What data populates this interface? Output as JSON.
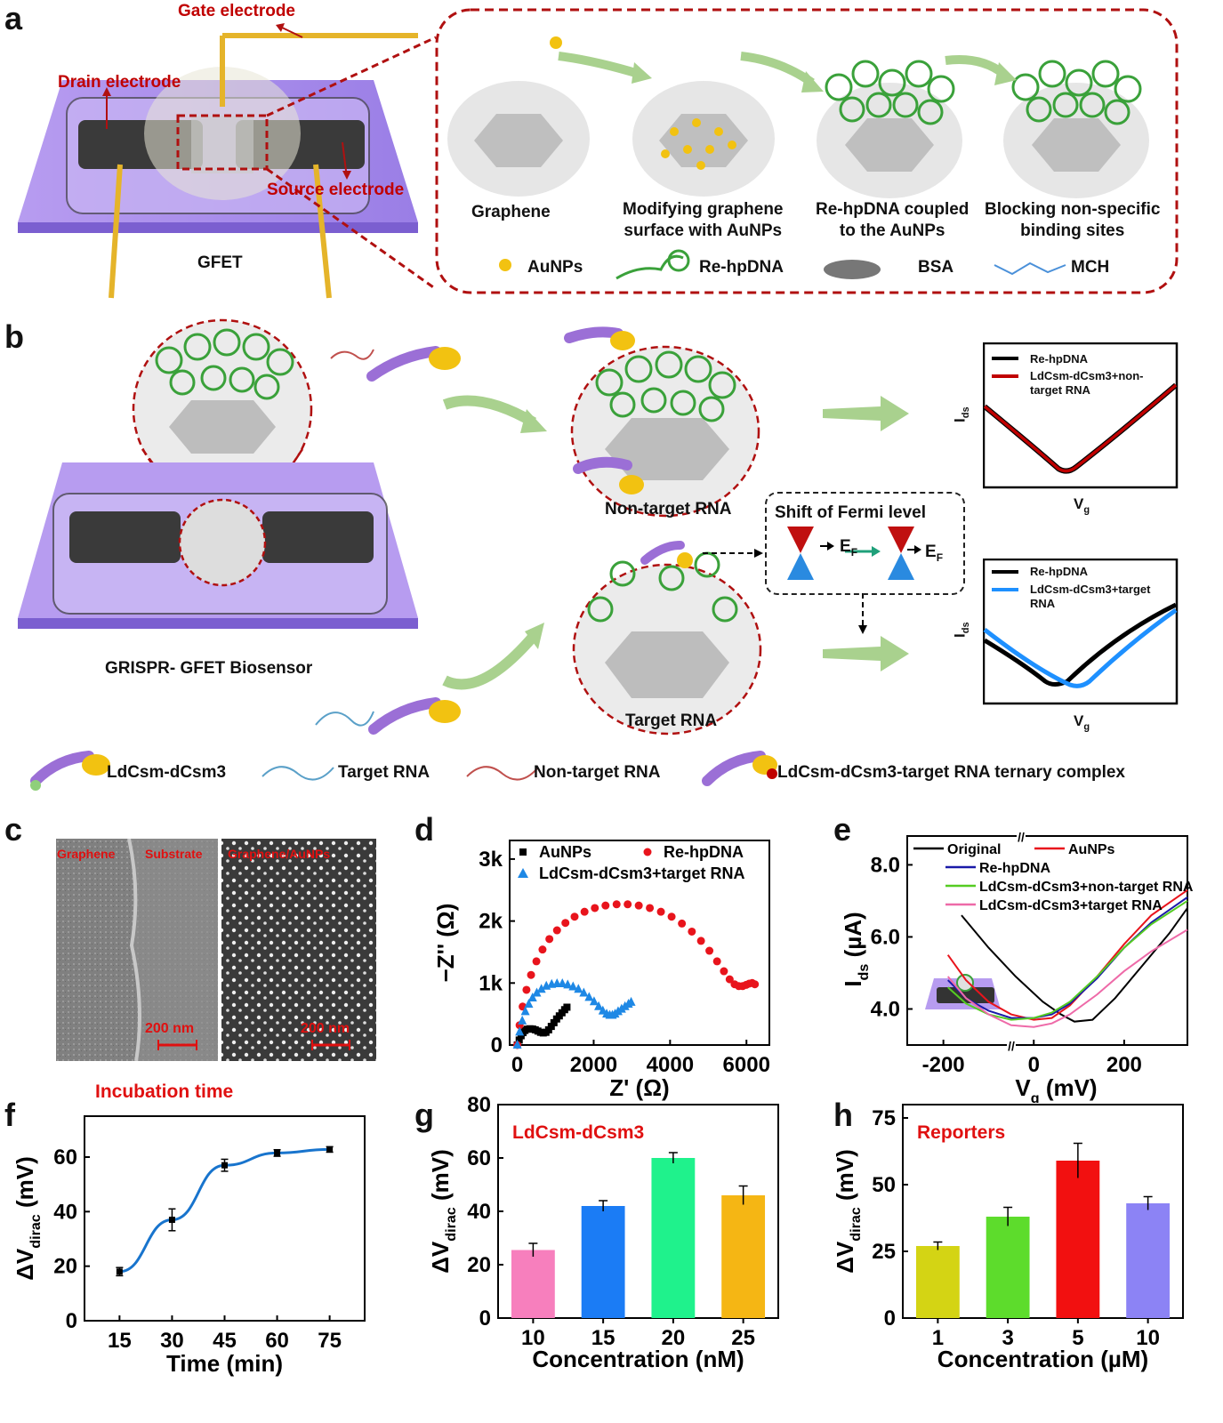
{
  "panels": {
    "a": {
      "label": "a",
      "gate": "Gate electrode",
      "drain": "Drain electrode",
      "source": "Source electrode",
      "device": "GFET",
      "steps": [
        "Graphene",
        "Modifying graphene\nsurface with AuNPs",
        "Re-hpDNA coupled\nto the AuNPs",
        "Blocking non-specific\nbinding sites"
      ],
      "legend": [
        "AuNPs",
        "Re-hpDNA",
        "BSA",
        "MCH"
      ]
    },
    "b": {
      "label": "b",
      "nontarget": "Non-target RNA",
      "target": "Target RNA",
      "biosensor": "GRISPR- GFET Biosensor",
      "fermi": "Shift of Fermi level",
      "ef": "E",
      "ef_sub": "F",
      "plot1_legend": [
        "Re-hpDNA",
        "LdCsm-dCsm3+non-\ntarget RNA"
      ],
      "plot2_legend": [
        "Re-hpDNA",
        "LdCsm-dCsm3+target\nRNA"
      ],
      "ids": "I",
      "ids_sub": "ds",
      "vg": "V",
      "vg_sub": "g",
      "legend": [
        "LdCsm-dCsm3",
        "Target RNA",
        "Non-target RNA",
        "LdCsm-dCsm3-target RNA ternary complex"
      ]
    },
    "c": {
      "label": "c",
      "img1_labels": [
        "Graphene",
        "Substrate"
      ],
      "img2_label": "Graphene/AuNPs",
      "scale": "200 nm"
    },
    "d": {
      "label": "d"
    },
    "e": {
      "label": "e"
    },
    "f": {
      "label": "f",
      "annotation": "Incubation time"
    },
    "g": {
      "label": "g",
      "annotation": "LdCsm-dCsm3"
    },
    "h": {
      "label": "h",
      "annotation": "Reporters"
    }
  },
  "chart_data": [
    {
      "panel": "d",
      "type": "scatter",
      "xlabel": "Z' (Ω)",
      "ylabel": "−Z'' (Ω)",
      "xticks": [
        "0",
        "2000",
        "4000",
        "6000"
      ],
      "yticks": [
        "0",
        "1k",
        "2k",
        "3k"
      ],
      "xlim": [
        -200,
        6600
      ],
      "ylim": [
        0,
        3300
      ],
      "series": [
        {
          "name": "AuNPs",
          "color": "#000000",
          "marker": "square",
          "x": [
            0,
            50,
            100,
            150,
            200,
            260,
            330,
            400,
            470,
            540,
            610,
            680,
            750,
            820,
            890,
            960,
            1030,
            1100,
            1170,
            1240,
            1300
          ],
          "y": [
            0,
            80,
            150,
            200,
            235,
            255,
            262,
            258,
            245,
            225,
            205,
            195,
            205,
            245,
            300,
            360,
            420,
            470,
            520,
            570,
            610
          ]
        },
        {
          "name": "Re-hpDNA",
          "color": "#e8141c",
          "marker": "circle",
          "x": [
            0,
            60,
            140,
            240,
            360,
            500,
            660,
            840,
            1040,
            1260,
            1500,
            1760,
            2030,
            2310,
            2600,
            2890,
            3180,
            3470,
            3760,
            4040,
            4310,
            4570,
            4810,
            5030,
            5230,
            5410,
            5560,
            5690,
            5800,
            5900,
            5990,
            6070,
            6150,
            6220
          ],
          "y": [
            0,
            320,
            620,
            890,
            1130,
            1350,
            1540,
            1710,
            1850,
            1970,
            2070,
            2150,
            2210,
            2250,
            2270,
            2270,
            2250,
            2210,
            2150,
            2070,
            1960,
            1830,
            1680,
            1520,
            1350,
            1190,
            1060,
            980,
            950,
            950,
            970,
            990,
            1000,
            980
          ]
        },
        {
          "name": "LdCsm-dCsm3+target RNA",
          "color": "#1e88e5",
          "marker": "triangle",
          "x": [
            0,
            60,
            130,
            210,
            300,
            400,
            510,
            630,
            760,
            900,
            1040,
            1180,
            1320,
            1460,
            1600,
            1740,
            1880,
            2010,
            2130,
            2240,
            2340,
            2420,
            2490,
            2560,
            2640,
            2730,
            2820,
            2910,
            2980
          ],
          "y": [
            0,
            210,
            390,
            540,
            660,
            760,
            840,
            900,
            950,
            980,
            990,
            990,
            970,
            940,
            900,
            840,
            770,
            700,
            620,
            550,
            500,
            480,
            480,
            500,
            540,
            580,
            620,
            660,
            690
          ]
        }
      ]
    },
    {
      "panel": "e",
      "type": "line",
      "xlabel": "V_g (mV)",
      "ylabel": "I_ds (µA)",
      "xticks": [
        "-200",
        "0",
        "200"
      ],
      "yticks": [
        "4.0",
        "6.0",
        "8.0"
      ],
      "xlim": [
        -280,
        340
      ],
      "ylim": [
        3.0,
        8.8
      ],
      "series": [
        {
          "name": "Original",
          "color": "#000000",
          "x": [
            -160,
            -100,
            -40,
            20,
            60,
            90,
            130,
            180,
            240,
            300,
            340
          ],
          "y": [
            6.6,
            5.7,
            4.9,
            4.2,
            3.85,
            3.65,
            3.7,
            4.3,
            5.2,
            6.1,
            6.8
          ]
        },
        {
          "name": "AuNPs",
          "color": "#e8141c",
          "x": [
            -190,
            -150,
            -100,
            -50,
            0,
            40,
            80,
            140,
            200,
            260,
            340
          ],
          "y": [
            5.5,
            4.8,
            4.2,
            3.85,
            3.7,
            3.75,
            4.1,
            4.9,
            5.8,
            6.6,
            7.3
          ]
        },
        {
          "name": "Re-hpDNA",
          "color": "#1a1aa8",
          "x": [
            -190,
            -150,
            -100,
            -50,
            0,
            40,
            80,
            140,
            200,
            260,
            340
          ],
          "y": [
            4.8,
            4.3,
            3.95,
            3.75,
            3.75,
            3.85,
            4.15,
            4.85,
            5.7,
            6.4,
            7.1
          ]
        },
        {
          "name": "LdCsm-dCsm3+non-target RNA",
          "color": "#55cc22",
          "x": [
            -190,
            -150,
            -100,
            -50,
            0,
            40,
            80,
            140,
            200,
            260,
            340
          ],
          "y": [
            4.6,
            4.15,
            3.85,
            3.7,
            3.75,
            3.9,
            4.2,
            4.9,
            5.7,
            6.35,
            7.0
          ]
        },
        {
          "name": "LdCsm-dCsm3+target RNA",
          "color": "#ee6aa8",
          "x": [
            -190,
            -150,
            -100,
            -50,
            0,
            40,
            80,
            140,
            200,
            260,
            340
          ],
          "y": [
            4.9,
            4.3,
            3.85,
            3.55,
            3.5,
            3.6,
            3.85,
            4.4,
            5.05,
            5.6,
            6.2
          ]
        }
      ]
    },
    {
      "panel": "f",
      "type": "line",
      "xlabel": "Time (min)",
      "ylabel": "ΔV_dirac (mV)",
      "xticks": [
        "15",
        "30",
        "45",
        "60",
        "75"
      ],
      "yticks": [
        "0",
        "20",
        "40",
        "60"
      ],
      "xlim": [
        5,
        85
      ],
      "ylim": [
        0,
        75
      ],
      "color": "#1874cd",
      "x": [
        15,
        30,
        45,
        60,
        75
      ],
      "y": [
        18,
        37,
        57,
        61.5,
        62.8
      ],
      "err": [
        1.5,
        4,
        2.2,
        1.2,
        1
      ]
    },
    {
      "panel": "g",
      "type": "bar",
      "xlabel": "Concentration (nM)",
      "ylabel": "ΔV_dirac (mV)",
      "categories": [
        "10",
        "15",
        "20",
        "25"
      ],
      "values": [
        25.5,
        42,
        60,
        46
      ],
      "err": [
        2.5,
        2,
        2,
        3.5
      ],
      "colors": [
        "#f77fbd",
        "#1b7cf5",
        "#1ff28c",
        "#f5b614"
      ],
      "yticks": [
        "0",
        "20",
        "40",
        "60",
        "80"
      ],
      "ylim": [
        0,
        80
      ]
    },
    {
      "panel": "h",
      "type": "bar",
      "xlabel": "Concentration (µM)",
      "ylabel": "ΔV_dirac (mV)",
      "categories": [
        "1",
        "3",
        "5",
        "10"
      ],
      "values": [
        27,
        38,
        59,
        43
      ],
      "err": [
        1.5,
        3.5,
        6.5,
        2.5
      ],
      "colors": [
        "#d4d414",
        "#5ddc2c",
        "#f21010",
        "#8c83f5"
      ],
      "yticks": [
        "0",
        "25",
        "50",
        "75"
      ],
      "ylim": [
        0,
        80
      ]
    }
  ]
}
